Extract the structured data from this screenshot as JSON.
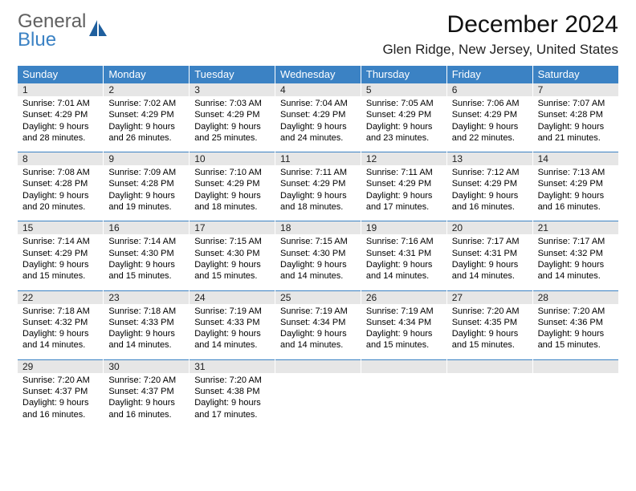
{
  "branding": {
    "line1": "General",
    "line2": "Blue",
    "icon_color": "#1f5f9e"
  },
  "title": "December 2024",
  "location": "Glen Ridge, New Jersey, United States",
  "colors": {
    "header_bg": "#3b82c4",
    "header_text": "#ffffff",
    "daynum_bg": "#e6e6e6",
    "rule": "#3b82c4"
  },
  "weekdays": [
    "Sunday",
    "Monday",
    "Tuesday",
    "Wednesday",
    "Thursday",
    "Friday",
    "Saturday"
  ],
  "weeks": [
    [
      {
        "n": "1",
        "sr": "7:01 AM",
        "ss": "4:29 PM",
        "dl": "9 hours and 28 minutes."
      },
      {
        "n": "2",
        "sr": "7:02 AM",
        "ss": "4:29 PM",
        "dl": "9 hours and 26 minutes."
      },
      {
        "n": "3",
        "sr": "7:03 AM",
        "ss": "4:29 PM",
        "dl": "9 hours and 25 minutes."
      },
      {
        "n": "4",
        "sr": "7:04 AM",
        "ss": "4:29 PM",
        "dl": "9 hours and 24 minutes."
      },
      {
        "n": "5",
        "sr": "7:05 AM",
        "ss": "4:29 PM",
        "dl": "9 hours and 23 minutes."
      },
      {
        "n": "6",
        "sr": "7:06 AM",
        "ss": "4:29 PM",
        "dl": "9 hours and 22 minutes."
      },
      {
        "n": "7",
        "sr": "7:07 AM",
        "ss": "4:28 PM",
        "dl": "9 hours and 21 minutes."
      }
    ],
    [
      {
        "n": "8",
        "sr": "7:08 AM",
        "ss": "4:28 PM",
        "dl": "9 hours and 20 minutes."
      },
      {
        "n": "9",
        "sr": "7:09 AM",
        "ss": "4:28 PM",
        "dl": "9 hours and 19 minutes."
      },
      {
        "n": "10",
        "sr": "7:10 AM",
        "ss": "4:29 PM",
        "dl": "9 hours and 18 minutes."
      },
      {
        "n": "11",
        "sr": "7:11 AM",
        "ss": "4:29 PM",
        "dl": "9 hours and 18 minutes."
      },
      {
        "n": "12",
        "sr": "7:11 AM",
        "ss": "4:29 PM",
        "dl": "9 hours and 17 minutes."
      },
      {
        "n": "13",
        "sr": "7:12 AM",
        "ss": "4:29 PM",
        "dl": "9 hours and 16 minutes."
      },
      {
        "n": "14",
        "sr": "7:13 AM",
        "ss": "4:29 PM",
        "dl": "9 hours and 16 minutes."
      }
    ],
    [
      {
        "n": "15",
        "sr": "7:14 AM",
        "ss": "4:29 PM",
        "dl": "9 hours and 15 minutes."
      },
      {
        "n": "16",
        "sr": "7:14 AM",
        "ss": "4:30 PM",
        "dl": "9 hours and 15 minutes."
      },
      {
        "n": "17",
        "sr": "7:15 AM",
        "ss": "4:30 PM",
        "dl": "9 hours and 15 minutes."
      },
      {
        "n": "18",
        "sr": "7:15 AM",
        "ss": "4:30 PM",
        "dl": "9 hours and 14 minutes."
      },
      {
        "n": "19",
        "sr": "7:16 AM",
        "ss": "4:31 PM",
        "dl": "9 hours and 14 minutes."
      },
      {
        "n": "20",
        "sr": "7:17 AM",
        "ss": "4:31 PM",
        "dl": "9 hours and 14 minutes."
      },
      {
        "n": "21",
        "sr": "7:17 AM",
        "ss": "4:32 PM",
        "dl": "9 hours and 14 minutes."
      }
    ],
    [
      {
        "n": "22",
        "sr": "7:18 AM",
        "ss": "4:32 PM",
        "dl": "9 hours and 14 minutes."
      },
      {
        "n": "23",
        "sr": "7:18 AM",
        "ss": "4:33 PM",
        "dl": "9 hours and 14 minutes."
      },
      {
        "n": "24",
        "sr": "7:19 AM",
        "ss": "4:33 PM",
        "dl": "9 hours and 14 minutes."
      },
      {
        "n": "25",
        "sr": "7:19 AM",
        "ss": "4:34 PM",
        "dl": "9 hours and 14 minutes."
      },
      {
        "n": "26",
        "sr": "7:19 AM",
        "ss": "4:34 PM",
        "dl": "9 hours and 15 minutes."
      },
      {
        "n": "27",
        "sr": "7:20 AM",
        "ss": "4:35 PM",
        "dl": "9 hours and 15 minutes."
      },
      {
        "n": "28",
        "sr": "7:20 AM",
        "ss": "4:36 PM",
        "dl": "9 hours and 15 minutes."
      }
    ],
    [
      {
        "n": "29",
        "sr": "7:20 AM",
        "ss": "4:37 PM",
        "dl": "9 hours and 16 minutes."
      },
      {
        "n": "30",
        "sr": "7:20 AM",
        "ss": "4:37 PM",
        "dl": "9 hours and 16 minutes."
      },
      {
        "n": "31",
        "sr": "7:20 AM",
        "ss": "4:38 PM",
        "dl": "9 hours and 17 minutes."
      },
      null,
      null,
      null,
      null
    ]
  ],
  "labels": {
    "sunrise": "Sunrise:",
    "sunset": "Sunset:",
    "daylight": "Daylight:"
  }
}
